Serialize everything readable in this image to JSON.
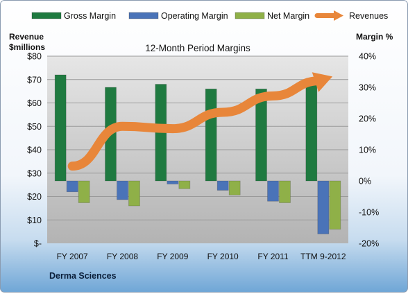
{
  "chart_data": {
    "type": "bar",
    "title": "12-Month Period Margins",
    "categories": [
      "FY 2007",
      "FY 2008",
      "FY 2009",
      "FY 2010",
      "FY 2011",
      "TTM 9-2012"
    ],
    "series": [
      {
        "name": "Gross Margin",
        "axis": "right",
        "kind": "bar",
        "values": [
          34,
          30,
          31,
          29.5,
          29.5,
          32
        ],
        "color": "#1f7a40"
      },
      {
        "name": "Operating Margin",
        "axis": "right",
        "kind": "bar",
        "values": [
          -3.5,
          -6,
          -1,
          -3,
          -6.5,
          -17
        ],
        "color": "#4a73b8"
      },
      {
        "name": "Net Margin",
        "axis": "right",
        "kind": "bar",
        "values": [
          -7,
          -8,
          -2.5,
          -4.5,
          -7,
          -15.5
        ],
        "color": "#8fb048"
      },
      {
        "name": "Revenues",
        "axis": "left",
        "kind": "line",
        "values": [
          33,
          50,
          49,
          56,
          63,
          70
        ],
        "color": "#e8863a"
      }
    ],
    "left_axis": {
      "label_lines": [
        "Revenue",
        "$millions"
      ],
      "min": 0,
      "max": 80,
      "step": 10,
      "tick_labels": [
        "$-",
        "$10",
        "$20",
        "$30",
        "$40",
        "$50",
        "$60",
        "$70",
        "$80"
      ]
    },
    "right_axis": {
      "label": "Margin %",
      "min": -20,
      "max": 40,
      "step": 10,
      "tick_labels": [
        "-20%",
        "-10%",
        "0%",
        "10%",
        "20%",
        "30%",
        "40%"
      ]
    },
    "legend_position": "top",
    "grid": true,
    "company": "Derma Sciences"
  }
}
